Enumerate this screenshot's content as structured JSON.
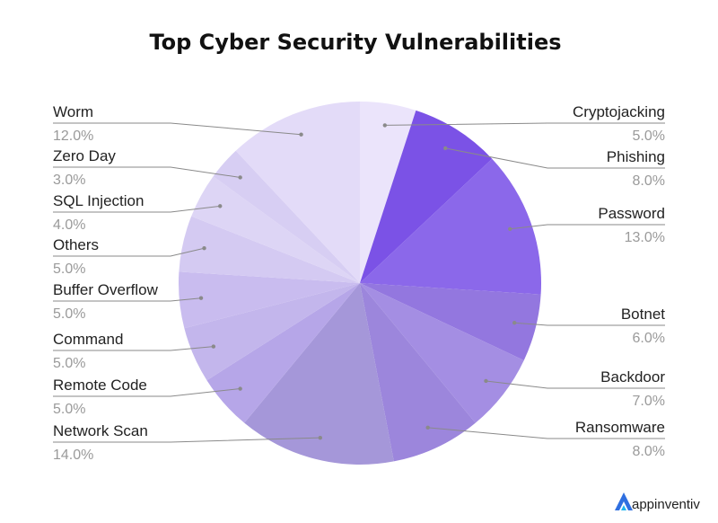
{
  "logo_text": "appinventiv",
  "chart_data": {
    "type": "pie",
    "title": "Top Cyber Security Vulnerabilities",
    "slices": [
      {
        "label": "Cryptojacking",
        "value": 5.0,
        "pct_label": "5.0%",
        "color": "#ebe4fb"
      },
      {
        "label": "Phishing",
        "value": 8.0,
        "pct_label": "8.0%",
        "color": "#7b52e6"
      },
      {
        "label": "Password",
        "value": 13.0,
        "pct_label": "13.0%",
        "color": "#8b68ea"
      },
      {
        "label": "Botnet",
        "value": 6.0,
        "pct_label": "6.0%",
        "color": "#9377df"
      },
      {
        "label": "Backdoor",
        "value": 7.0,
        "pct_label": "7.0%",
        "color": "#a48ee3"
      },
      {
        "label": "Ransomware",
        "value": 8.0,
        "pct_label": "8.0%",
        "color": "#9c86dc"
      },
      {
        "label": "Network Scan",
        "value": 14.0,
        "pct_label": "14.0%",
        "color": "#a597d9"
      },
      {
        "label": "Remote Code",
        "value": 5.0,
        "pct_label": "5.0%",
        "color": "#b6a6e8"
      },
      {
        "label": "Command",
        "value": 5.0,
        "pct_label": "5.0%",
        "color": "#c3b6ec"
      },
      {
        "label": "Buffer Overflow",
        "value": 5.0,
        "pct_label": "5.0%",
        "color": "#c9bcef"
      },
      {
        "label": "Others",
        "value": 5.0,
        "pct_label": "5.0%",
        "color": "#d4caf2"
      },
      {
        "label": "SQL Injection",
        "value": 4.0,
        "pct_label": "4.0%",
        "color": "#ddd5f5"
      },
      {
        "label": "Zero Day",
        "value": 3.0,
        "pct_label": "3.0%",
        "color": "#d7cef3"
      },
      {
        "label": "Worm",
        "value": 12.0,
        "pct_label": "12.0%",
        "color": "#e3dbf8"
      }
    ]
  }
}
